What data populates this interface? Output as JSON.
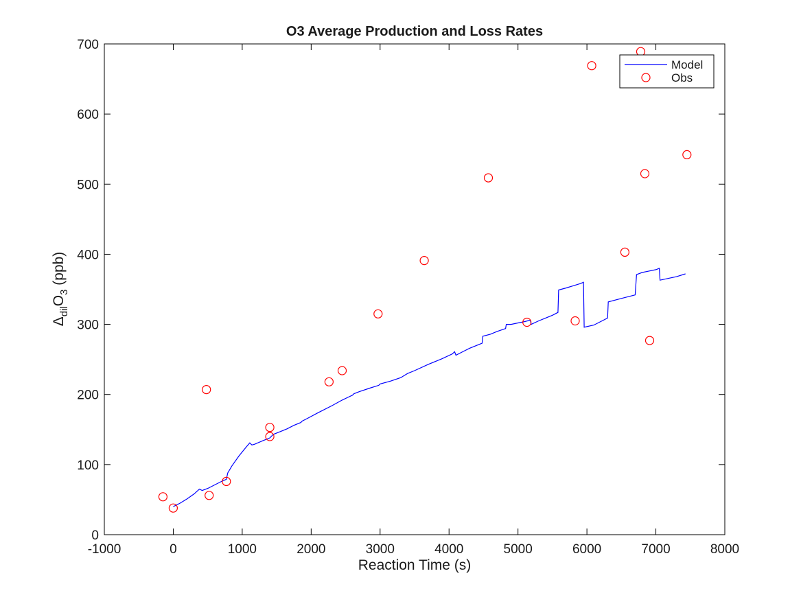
{
  "chart_data": {
    "type": "line",
    "title": "O3 Average Production and Loss Rates",
    "xlabel": "Reaction Time (s)",
    "ylabel": {
      "prefix": "Δ",
      "prefix_sub": "dil",
      "main": "O",
      "main_sub": "3",
      "suffix": " (ppb)"
    },
    "xlim": [
      -1000,
      8000
    ],
    "ylim": [
      0,
      700
    ],
    "xticks": [
      -1000,
      0,
      1000,
      2000,
      3000,
      4000,
      5000,
      6000,
      7000,
      8000
    ],
    "yticks": [
      0,
      100,
      200,
      300,
      400,
      500,
      600,
      700
    ],
    "legend": {
      "placement": "top-right"
    },
    "colors": {
      "model": "#0000ff",
      "obs": "#ff0000",
      "axes": "#000000"
    },
    "series": [
      {
        "name": "Model",
        "style": "line",
        "x": [
          0,
          100,
          200,
          300,
          380,
          420,
          500,
          600,
          700,
          770,
          790,
          850,
          950,
          1050,
          1110,
          1140,
          1180,
          1300,
          1400,
          1450,
          1550,
          1650,
          1750,
          1850,
          1870,
          1950,
          2100,
          2300,
          2450,
          2600,
          2620,
          2700,
          2850,
          2980,
          3000,
          3150,
          3300,
          3350,
          3400,
          3500,
          3700,
          3900,
          4050,
          4080,
          4100,
          4200,
          4300,
          4480,
          4490,
          4600,
          4700,
          4820,
          4830,
          4900,
          5000,
          5100,
          5180,
          5190,
          5300,
          5400,
          5500,
          5580,
          5590,
          5700,
          5800,
          5900,
          5950,
          5960,
          6100,
          6200,
          6300,
          6310,
          6500,
          6700,
          6720,
          6800,
          6900,
          7000,
          7050,
          7060,
          7200,
          7300,
          7430
        ],
        "y": [
          40,
          45,
          51,
          58,
          65,
          63,
          66,
          71,
          76,
          79,
          88,
          98,
          112,
          124,
          131,
          128,
          129,
          134,
          138,
          143,
          147,
          151,
          156,
          160,
          162,
          166,
          174,
          184,
          192,
          199,
          201,
          204,
          209,
          213,
          215,
          219,
          224,
          227,
          230,
          234,
          243,
          251,
          258,
          261,
          256,
          261,
          266,
          273,
          283,
          286,
          290,
          294,
          300,
          300,
          302,
          304,
          306,
          300,
          305,
          309,
          313,
          317,
          349,
          352,
          355,
          358,
          360,
          296,
          299,
          304,
          309,
          332,
          337,
          342,
          371,
          374,
          376,
          378,
          380,
          363,
          366,
          368,
          372
        ]
      },
      {
        "name": "Obs",
        "style": "markers",
        "marker": "circle",
        "x": [
          -150,
          0,
          480,
          520,
          770,
          1400,
          1400,
          2260,
          2450,
          2970,
          3640,
          4570,
          5130,
          5830,
          6070,
          6550,
          6780,
          6840,
          6910,
          7450
        ],
        "y": [
          54,
          38,
          207,
          56,
          76,
          153,
          140,
          218,
          234,
          315,
          391,
          509,
          303,
          305,
          669,
          403,
          689,
          515,
          277,
          542
        ]
      }
    ]
  }
}
